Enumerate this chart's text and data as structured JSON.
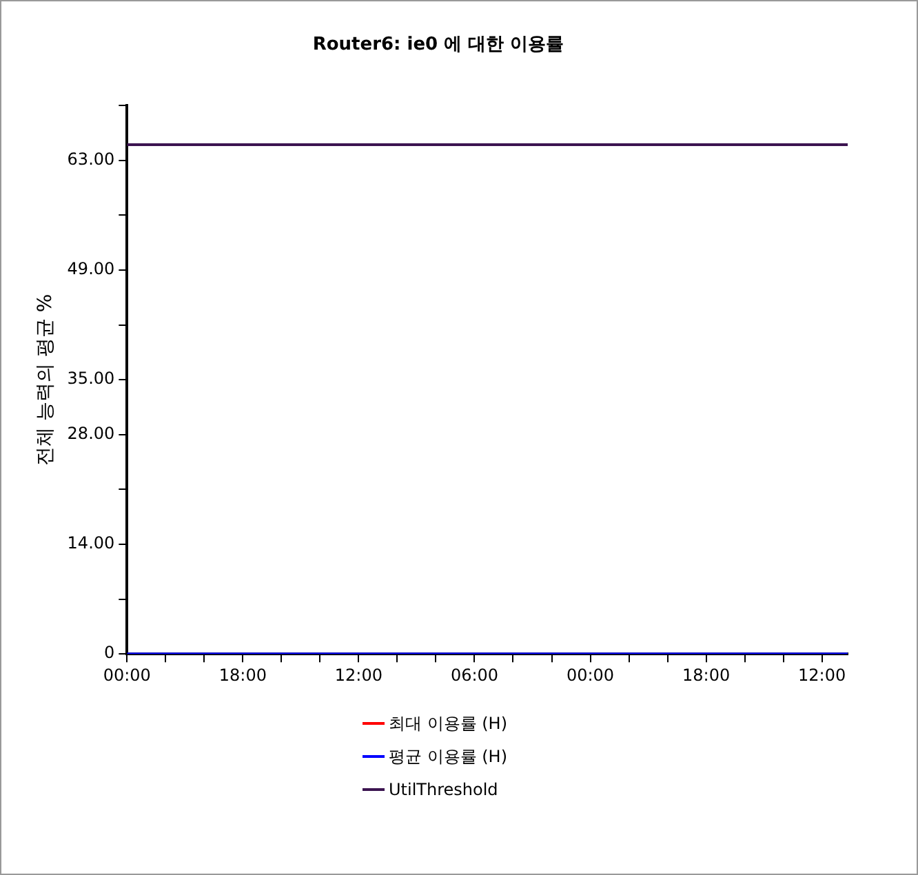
{
  "chart_data": {
    "type": "line",
    "title": "Router6: ie0 에 대한 이용률",
    "ylabel": "전체 능력의 평균 %",
    "x": [
      "--01-01T00:00",
      "--01-05T16:00"
    ],
    "xlim": [
      "--01-01T00:00",
      "--01-05T16:00"
    ],
    "xticks": [
      {
        "value": "--01-01T00:00",
        "label": "00:00"
      },
      {
        "value": "--01-01T06:00",
        "label": null
      },
      {
        "value": "--01-01T12:00",
        "label": null
      },
      {
        "value": "--01-01T18:00",
        "label": "18:00"
      },
      {
        "value": "--01-02T00:00",
        "label": null
      },
      {
        "value": "--01-02T06:00",
        "label": null
      },
      {
        "value": "--01-02T12:00",
        "label": "12:00"
      },
      {
        "value": "--01-02T18:00",
        "label": null
      },
      {
        "value": "--01-03T00:00",
        "label": null
      },
      {
        "value": "--01-03T06:00",
        "label": "06:00"
      },
      {
        "value": "--01-03T12:00",
        "label": null
      },
      {
        "value": "--01-03T18:00",
        "label": null
      },
      {
        "value": "--01-04T00:00",
        "label": "00:00"
      },
      {
        "value": "--01-04T06:00",
        "label": null
      },
      {
        "value": "--01-04T12:00",
        "label": null
      },
      {
        "value": "--01-04T18:00",
        "label": "18:00"
      },
      {
        "value": "--01-05T00:00",
        "label": null
      },
      {
        "value": "--01-05T06:00",
        "label": null
      },
      {
        "value": "--01-05T12:00",
        "label": "12:00"
      }
    ],
    "ylim": [
      0,
      70
    ],
    "yticks": [
      0,
      {
        "value": 7,
        "label": null
      },
      {
        "value": 14,
        "label": "14.00"
      },
      {
        "value": 21,
        "label": null
      },
      {
        "value": 28,
        "label": "28.00"
      },
      {
        "value": 35,
        "label": "35.00"
      },
      {
        "value": 42,
        "label": null
      },
      {
        "value": 49,
        "label": "49.00"
      },
      {
        "value": 56,
        "label": null
      },
      {
        "value": 63,
        "label": "63.00"
      },
      {
        "value": 70,
        "label": null
      }
    ],
    "series": [
      {
        "name": "최대 이용률 (H)",
        "color": "#ff0000",
        "values": [
          null,
          null
        ]
      },
      {
        "name": "평균 이용률 (H)",
        "color": "#0000ff",
        "values": [
          0,
          0
        ]
      },
      {
        "name": "UtilThreshold",
        "color": "#3c1450",
        "values": [
          65,
          65
        ]
      }
    ],
    "grid": false,
    "legend": "bottom",
    "marker": "none",
    "line_style": "solid"
  }
}
